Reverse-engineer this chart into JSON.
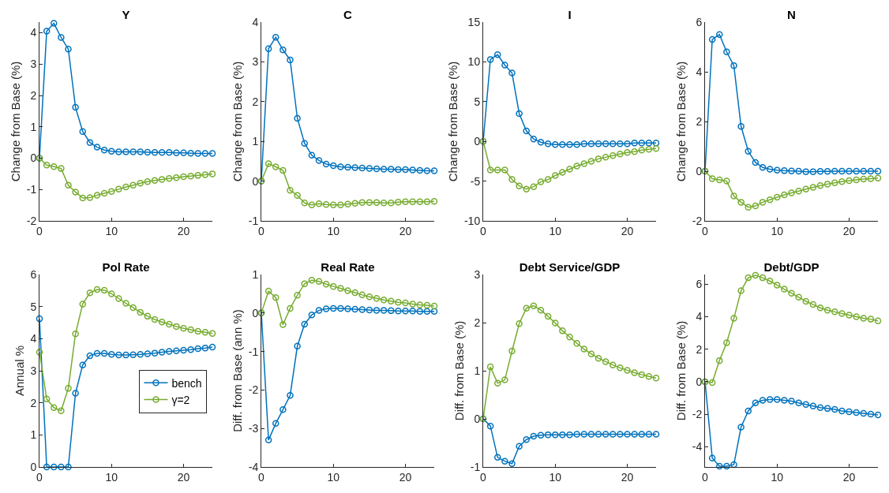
{
  "chart_data": [
    {
      "type": "line",
      "title": "Y",
      "ylabel": "Change from Base (%)",
      "x": [
        0,
        1,
        2,
        3,
        4,
        5,
        6,
        7,
        8,
        9,
        10,
        11,
        12,
        13,
        14,
        15,
        16,
        17,
        18,
        19,
        20,
        21,
        22,
        23,
        24
      ],
      "xlim": [
        0,
        24
      ],
      "xticks": [
        0,
        10,
        20
      ],
      "ylim": [
        -2,
        4.34
      ],
      "yticks": [
        -2,
        -1,
        0,
        1,
        2,
        3,
        4
      ],
      "marker": "circle",
      "line_style": "solid",
      "series": [
        {
          "color": "#0072bd",
          "values": [
            0,
            4.05,
            4.3,
            3.85,
            3.48,
            1.62,
            0.85,
            0.5,
            0.35,
            0.26,
            0.22,
            0.2,
            0.2,
            0.2,
            0.2,
            0.19,
            0.18,
            0.18,
            0.18,
            0.17,
            0.17,
            0.16,
            0.15,
            0.15,
            0.15
          ]
        },
        {
          "color": "#77ac30",
          "values": [
            0,
            -0.22,
            -0.27,
            -0.33,
            -0.86,
            -1.08,
            -1.27,
            -1.26,
            -1.18,
            -1.12,
            -1.06,
            -0.99,
            -0.92,
            -0.86,
            -0.8,
            -0.75,
            -0.71,
            -0.68,
            -0.65,
            -0.62,
            -0.59,
            -0.57,
            -0.55,
            -0.53,
            -0.5
          ]
        }
      ]
    },
    {
      "type": "line",
      "title": "C",
      "ylabel": "Change from Base (%)",
      "x": [
        0,
        1,
        2,
        3,
        4,
        5,
        6,
        7,
        8,
        9,
        10,
        11,
        12,
        13,
        14,
        15,
        16,
        17,
        18,
        19,
        20,
        21,
        22,
        23,
        24
      ],
      "xlim": [
        0,
        24
      ],
      "xticks": [
        0,
        10,
        20
      ],
      "ylim": [
        -1,
        4
      ],
      "yticks": [
        -1,
        0,
        1,
        2,
        3,
        4
      ],
      "marker": "circle",
      "line_style": "solid",
      "series": [
        {
          "color": "#0072bd",
          "values": [
            0,
            3.33,
            3.62,
            3.3,
            3.05,
            1.58,
            0.95,
            0.65,
            0.52,
            0.43,
            0.39,
            0.36,
            0.35,
            0.34,
            0.33,
            0.32,
            0.31,
            0.3,
            0.3,
            0.29,
            0.29,
            0.28,
            0.27,
            0.26,
            0.26
          ]
        },
        {
          "color": "#77ac30",
          "values": [
            0,
            0.44,
            0.36,
            0.27,
            -0.23,
            -0.36,
            -0.55,
            -0.6,
            -0.57,
            -0.59,
            -0.6,
            -0.6,
            -0.58,
            -0.56,
            -0.54,
            -0.54,
            -0.54,
            -0.55,
            -0.55,
            -0.53,
            -0.52,
            -0.52,
            -0.52,
            -0.52,
            -0.51
          ]
        }
      ]
    },
    {
      "type": "line",
      "title": "I",
      "ylabel": "Change from Base (%)",
      "x": [
        0,
        1,
        2,
        3,
        4,
        5,
        6,
        7,
        8,
        9,
        10,
        11,
        12,
        13,
        14,
        15,
        16,
        17,
        18,
        19,
        20,
        21,
        22,
        23,
        24
      ],
      "xlim": [
        0,
        24
      ],
      "xticks": [
        0,
        10,
        20
      ],
      "ylim": [
        -10,
        15
      ],
      "yticks": [
        -10,
        -5,
        0,
        5,
        10,
        15
      ],
      "marker": "circle",
      "line_style": "solid",
      "series": [
        {
          "color": "#0072bd",
          "values": [
            0,
            10.3,
            10.9,
            9.6,
            8.6,
            3.5,
            1.3,
            0.3,
            -0.1,
            -0.3,
            -0.4,
            -0.4,
            -0.4,
            -0.4,
            -0.3,
            -0.3,
            -0.3,
            -0.3,
            -0.3,
            -0.3,
            -0.3,
            -0.2,
            -0.2,
            -0.2,
            -0.2
          ]
        },
        {
          "color": "#77ac30",
          "values": [
            0,
            -3.6,
            -3.6,
            -3.6,
            -4.8,
            -5.6,
            -6.0,
            -5.7,
            -5.1,
            -4.8,
            -4.3,
            -3.9,
            -3.5,
            -3.1,
            -2.8,
            -2.5,
            -2.2,
            -2.0,
            -1.8,
            -1.6,
            -1.4,
            -1.3,
            -1.1,
            -1.0,
            -0.9
          ]
        }
      ]
    },
    {
      "type": "line",
      "title": "N",
      "ylabel": "Change from Base (%)",
      "x": [
        0,
        1,
        2,
        3,
        4,
        5,
        6,
        7,
        8,
        9,
        10,
        11,
        12,
        13,
        14,
        15,
        16,
        17,
        18,
        19,
        20,
        21,
        22,
        23,
        24
      ],
      "xlim": [
        0,
        24
      ],
      "xticks": [
        0,
        10,
        20
      ],
      "ylim": [
        -2,
        6
      ],
      "yticks": [
        -2,
        0,
        2,
        4,
        6
      ],
      "marker": "circle",
      "line_style": "solid",
      "series": [
        {
          "color": "#0072bd",
          "values": [
            0,
            5.3,
            5.5,
            4.8,
            4.25,
            1.8,
            0.8,
            0.35,
            0.15,
            0.08,
            0.04,
            0.02,
            0.01,
            0,
            -0.02,
            -0.02,
            -0.01,
            -0.01,
            0,
            0,
            0,
            0,
            0,
            0,
            0
          ]
        },
        {
          "color": "#77ac30",
          "values": [
            0,
            -0.3,
            -0.35,
            -0.4,
            -1.0,
            -1.25,
            -1.45,
            -1.4,
            -1.25,
            -1.15,
            -1.05,
            -0.95,
            -0.87,
            -0.8,
            -0.72,
            -0.65,
            -0.58,
            -0.52,
            -0.47,
            -0.42,
            -0.38,
            -0.35,
            -0.32,
            -0.3,
            -0.28
          ]
        }
      ]
    },
    {
      "type": "line",
      "title": "Pol Rate",
      "ylabel": "Annual %",
      "x": [
        0,
        1,
        2,
        3,
        4,
        5,
        6,
        7,
        8,
        9,
        10,
        11,
        12,
        13,
        14,
        15,
        16,
        17,
        18,
        19,
        20,
        21,
        22,
        23,
        24
      ],
      "xlim": [
        0,
        24
      ],
      "xticks": [
        0,
        10,
        20
      ],
      "ylim": [
        0,
        6
      ],
      "yticks": [
        0,
        1,
        2,
        3,
        4,
        5,
        6
      ],
      "marker": "circle",
      "line_style": "solid",
      "legend": "bottom right",
      "series": [
        {
          "name": "bench",
          "color": "#0072bd",
          "values": [
            4.62,
            0,
            0,
            0,
            0,
            2.3,
            3.18,
            3.47,
            3.54,
            3.54,
            3.51,
            3.49,
            3.49,
            3.5,
            3.51,
            3.53,
            3.55,
            3.58,
            3.6,
            3.62,
            3.64,
            3.66,
            3.69,
            3.71,
            3.74
          ]
        },
        {
          "name": "γ=2",
          "color": "#77ac30",
          "values": [
            3.58,
            2.12,
            1.85,
            1.75,
            2.45,
            4.15,
            5.08,
            5.43,
            5.53,
            5.51,
            5.4,
            5.25,
            5.1,
            4.97,
            4.82,
            4.7,
            4.6,
            4.52,
            4.45,
            4.38,
            4.32,
            4.28,
            4.23,
            4.2,
            4.16
          ]
        }
      ]
    },
    {
      "type": "line",
      "title": "Real Rate",
      "ylabel": "Diff. from Base (ann %)",
      "x": [
        0,
        1,
        2,
        3,
        4,
        5,
        6,
        7,
        8,
        9,
        10,
        11,
        12,
        13,
        14,
        15,
        16,
        17,
        18,
        19,
        20,
        21,
        22,
        23,
        24
      ],
      "xlim": [
        0,
        24
      ],
      "xticks": [
        0,
        10,
        20
      ],
      "ylim": [
        -4,
        1
      ],
      "yticks": [
        -4,
        -3,
        -2,
        -1,
        0,
        1
      ],
      "marker": "circle",
      "line_style": "solid",
      "series": [
        {
          "color": "#0072bd",
          "values": [
            0,
            -3.3,
            -2.87,
            -2.51,
            -2.14,
            -0.86,
            -0.29,
            -0.05,
            0.07,
            0.11,
            0.12,
            0.12,
            0.11,
            0.1,
            0.09,
            0.08,
            0.07,
            0.07,
            0.06,
            0.05,
            0.05,
            0.05,
            0.04,
            0.04,
            0.04
          ]
        },
        {
          "color": "#77ac30",
          "values": [
            0,
            0.57,
            0.4,
            -0.3,
            0.12,
            0.46,
            0.76,
            0.85,
            0.82,
            0.75,
            0.69,
            0.64,
            0.58,
            0.53,
            0.47,
            0.42,
            0.38,
            0.34,
            0.31,
            0.28,
            0.26,
            0.23,
            0.21,
            0.2,
            0.18
          ]
        }
      ]
    },
    {
      "type": "line",
      "title": "Debt Service/GDP",
      "ylabel": "Diff. from Base (%)",
      "x": [
        0,
        1,
        2,
        3,
        4,
        5,
        6,
        7,
        8,
        9,
        10,
        11,
        12,
        13,
        14,
        15,
        16,
        17,
        18,
        19,
        20,
        21,
        22,
        23,
        24
      ],
      "xlim": [
        0,
        24
      ],
      "xticks": [
        0,
        10,
        20
      ],
      "ylim": [
        -1,
        3
      ],
      "yticks": [
        -1,
        0,
        1,
        2,
        3
      ],
      "marker": "circle",
      "line_style": "solid",
      "series": [
        {
          "color": "#0072bd",
          "values": [
            0,
            -0.15,
            -0.8,
            -0.88,
            -0.93,
            -0.57,
            -0.43,
            -0.36,
            -0.34,
            -0.33,
            -0.33,
            -0.33,
            -0.33,
            -0.32,
            -0.32,
            -0.32,
            -0.32,
            -0.32,
            -0.32,
            -0.32,
            -0.32,
            -0.32,
            -0.32,
            -0.32,
            -0.32
          ]
        },
        {
          "color": "#77ac30",
          "values": [
            0,
            1.08,
            0.74,
            0.81,
            1.41,
            1.98,
            2.3,
            2.35,
            2.26,
            2.13,
            1.99,
            1.83,
            1.7,
            1.57,
            1.45,
            1.35,
            1.26,
            1.19,
            1.12,
            1.06,
            1.01,
            0.96,
            0.92,
            0.88,
            0.85
          ]
        }
      ]
    },
    {
      "type": "line",
      "title": "Debt/GDP",
      "ylabel": "Diff. from Base (%)",
      "x": [
        0,
        1,
        2,
        3,
        4,
        5,
        6,
        7,
        8,
        9,
        10,
        11,
        12,
        13,
        14,
        15,
        16,
        17,
        18,
        19,
        20,
        21,
        22,
        23,
        24
      ],
      "xlim": [
        0,
        24
      ],
      "xticks": [
        0,
        10,
        20
      ],
      "ylim": [
        -5.25,
        6.6
      ],
      "yticks": [
        -4,
        -2,
        0,
        2,
        4,
        6
      ],
      "marker": "circle",
      "line_style": "solid",
      "series": [
        {
          "color": "#0072bd",
          "values": [
            0,
            -4.7,
            -5.2,
            -5.2,
            -5.1,
            -2.8,
            -1.8,
            -1.3,
            -1.15,
            -1.1,
            -1.1,
            -1.15,
            -1.2,
            -1.3,
            -1.4,
            -1.5,
            -1.6,
            -1.65,
            -1.7,
            -1.8,
            -1.85,
            -1.9,
            -1.95,
            -2.0,
            -2.05
          ]
        },
        {
          "color": "#77ac30",
          "values": [
            0,
            -0.05,
            1.3,
            2.4,
            3.9,
            5.6,
            6.4,
            6.55,
            6.4,
            6.2,
            5.95,
            5.7,
            5.45,
            5.2,
            4.95,
            4.75,
            4.55,
            4.4,
            4.3,
            4.2,
            4.1,
            4.0,
            3.9,
            3.85,
            3.75
          ]
        }
      ]
    }
  ]
}
